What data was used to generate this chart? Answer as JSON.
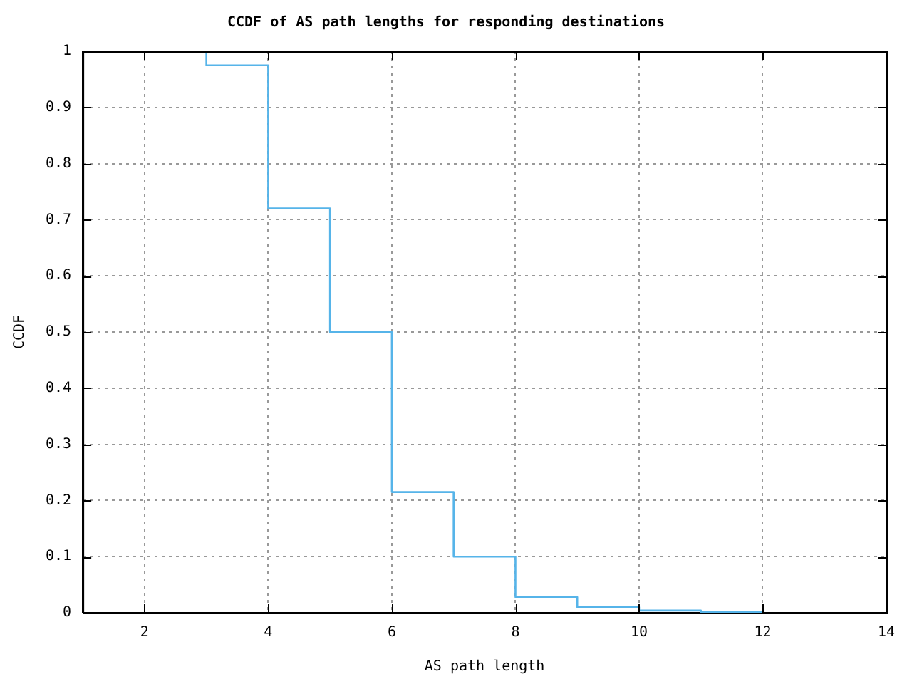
{
  "chart_data": {
    "type": "step",
    "title": "CCDF of AS path lengths for responding destinations",
    "xlabel": "AS path length",
    "ylabel": "CCDF",
    "x": [
      3,
      4,
      5,
      6,
      7,
      8,
      9,
      10,
      11,
      12
    ],
    "series": [
      {
        "color": "#56b4e9",
        "values": [
          1,
          0.975,
          0.72,
          0.5,
          0.215,
          0.1,
          0.028,
          0.01,
          0.004,
          0.001
        ]
      }
    ],
    "xlim": [
      1,
      14
    ],
    "xticks": [
      2,
      4,
      6,
      8,
      10,
      12,
      14
    ],
    "ylim": [
      0,
      1
    ],
    "yticks": [
      0,
      0.1,
      0.2,
      0.3,
      0.4,
      0.5,
      0.6,
      0.7,
      0.8,
      0.9,
      1
    ],
    "grid": true,
    "legend": false
  }
}
